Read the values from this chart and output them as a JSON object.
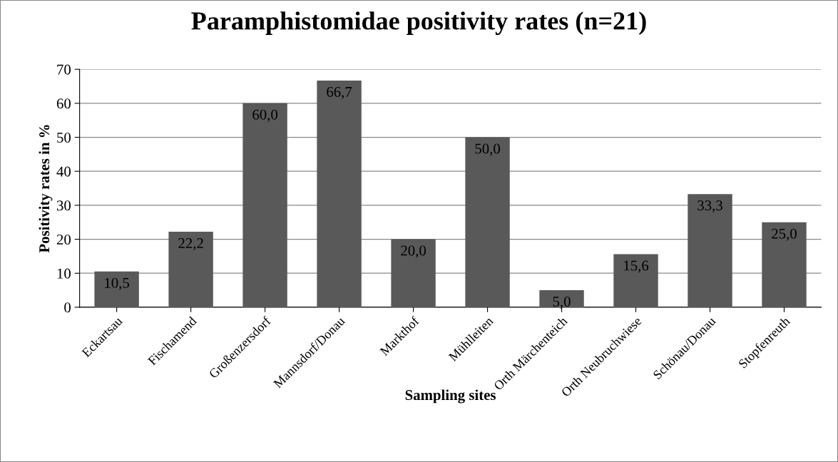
{
  "chart_data": {
    "type": "bar",
    "title": "Paramphistomidae positivity rates (n=21)",
    "xlabel": "Sampling sites",
    "ylabel": "Positivity rates in %",
    "categories": [
      "Eckartsau",
      "Fischamend",
      "Großenzersdorf",
      "Mannsdorf/Donau",
      "Markthof",
      "Mühlleiten",
      "Orth Märchenteich",
      "Orth Neubruchwiese",
      "Schönau/Donau",
      "Stopfenreuth"
    ],
    "values": [
      10.5,
      22.2,
      60.0,
      66.7,
      20.0,
      50.0,
      5.0,
      15.6,
      33.3,
      25.0
    ],
    "value_labels": [
      "10,5",
      "22,2",
      "60,0",
      "66,7",
      "20,0",
      "50,0",
      "5,0",
      "15,6",
      "33,3",
      "25,0"
    ],
    "color": "#595959",
    "ylim": [
      0,
      70
    ],
    "yticks": [
      0,
      10,
      20,
      30,
      40,
      50,
      60,
      70
    ],
    "grid": "y",
    "legend": false
  }
}
